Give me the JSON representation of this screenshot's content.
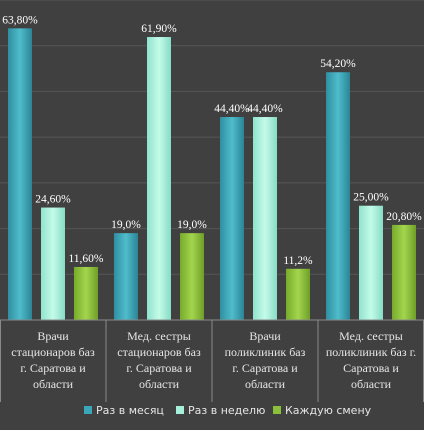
{
  "chart_data": {
    "type": "bar",
    "categories": [
      "Врачи стационаров баз г. Саратова и области",
      "Мед. сестры стационаров баз г. Саратова и области",
      "Врачи поликлиник баз г. Саратова и области",
      "Мед. сестры поликлиник баз г. Саратова и области"
    ],
    "category_lines": [
      [
        "Врачи",
        "стационаров баз",
        "г. Саратова и",
        "области"
      ],
      [
        "Мед. сестры",
        "стационаров баз",
        "г. Саратова и",
        "области"
      ],
      [
        "Врачи",
        "поликлиник баз",
        "г. Саратова и",
        "области"
      ],
      [
        "Мед. сестры",
        "поликлиник баз г.",
        "Саратова и",
        "области"
      ]
    ],
    "series": [
      {
        "name": "Раз в месяц",
        "values": [
          63.8,
          19.0,
          44.4,
          54.2
        ],
        "labels": [
          "63,80%",
          "19,0%",
          "44,40%",
          "54,20%"
        ],
        "color": "#3aa6b9"
      },
      {
        "name": "Раз в неделю",
        "values": [
          24.6,
          61.9,
          44.4,
          25.0
        ],
        "labels": [
          "24,60%",
          "61,90%",
          "44,40%",
          "25,00%"
        ],
        "color": "#a6f0dc"
      },
      {
        "name": "Каждую смену",
        "values": [
          11.6,
          19.0,
          11.2,
          20.8
        ],
        "labels": [
          "11,60%",
          "19,0%",
          "11,2%",
          "20,80%"
        ],
        "color": "#8bc13a"
      }
    ],
    "ylim": [
      0,
      70
    ],
    "grid": true,
    "legend_position": "bottom"
  }
}
